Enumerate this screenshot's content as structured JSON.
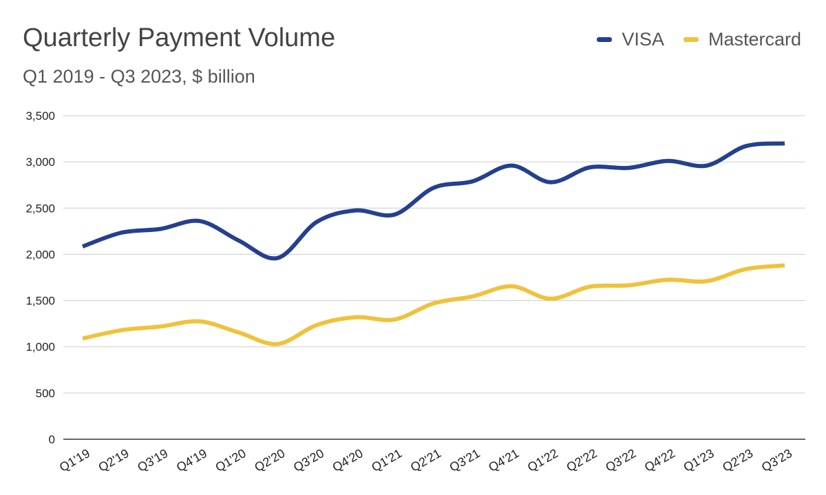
{
  "chart_data": {
    "type": "line",
    "title": "Quarterly Payment Volume",
    "subtitle": "Q1 2019 - Q3 2023, $ billion",
    "categories": [
      "Q1'19",
      "Q2'19",
      "Q3'19",
      "Q4'19",
      "Q1'20",
      "Q2'20",
      "Q3'20",
      "Q4'20",
      "Q1'21",
      "Q2'21",
      "Q3'21",
      "Q4'21",
      "Q1'22",
      "Q2'22",
      "Q3'22",
      "Q4'22",
      "Q1'23",
      "Q2'23",
      "Q3'23"
    ],
    "series": [
      {
        "name": "VISA",
        "color": "#24408e",
        "values": [
          2085,
          2235,
          2275,
          2360,
          2150,
          1960,
          2350,
          2475,
          2430,
          2720,
          2790,
          2960,
          2780,
          2940,
          2935,
          3010,
          2960,
          3170,
          3200
        ]
      },
      {
        "name": "Mastercard",
        "color": "#f0c23c",
        "values": [
          1090,
          1180,
          1220,
          1275,
          1155,
          1030,
          1235,
          1320,
          1295,
          1470,
          1545,
          1655,
          1520,
          1650,
          1665,
          1725,
          1710,
          1840,
          1880
        ]
      }
    ],
    "ylim": [
      0,
      3500
    ],
    "yticks": [
      0,
      500,
      1000,
      1500,
      2000,
      2500,
      3000,
      3500
    ],
    "ytick_labels": [
      "0",
      "500",
      "1,000",
      "1,500",
      "2,000",
      "2,500",
      "3,000",
      "3,500"
    ],
    "grid": true,
    "legend_position": "top-right",
    "xlabel": "",
    "ylabel": ""
  }
}
